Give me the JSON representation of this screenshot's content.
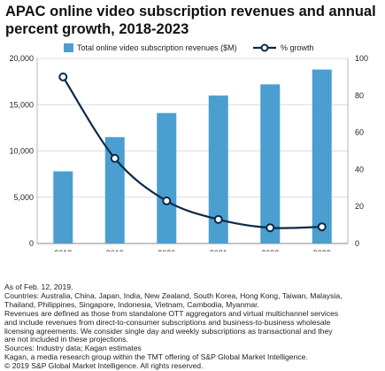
{
  "title": "APAC online video subscription revenues and annual percent growth, 2018-2023",
  "colors": {
    "bar": "#4b9fd0",
    "line": "#0d2a4a",
    "grid": "#d0d0d0",
    "axis": "#888888"
  },
  "chart_data": {
    "type": "bar",
    "categories": [
      "2018",
      "2019",
      "2020",
      "2021",
      "2022",
      "2023"
    ],
    "series": [
      {
        "name": "Total online video subscription revenues ($M)",
        "type": "bar",
        "axis": "left",
        "values": [
          7800,
          11500,
          14100,
          16000,
          17200,
          18800
        ]
      },
      {
        "name": "% growth",
        "type": "line",
        "axis": "right",
        "markers": "circle",
        "values": [
          90,
          46,
          23,
          13,
          8.5,
          9
        ]
      }
    ],
    "y_left": {
      "ylim": [
        0,
        20000
      ],
      "ticks": [
        "0",
        "5,000",
        "10,000",
        "15,000",
        "20,000"
      ],
      "tick_values": [
        0,
        5000,
        10000,
        15000,
        20000
      ]
    },
    "y_right": {
      "ylim": [
        0,
        100
      ],
      "ticks": [
        "0",
        "20",
        "40",
        "60",
        "80",
        "100"
      ],
      "tick_values": [
        0,
        20,
        40,
        60,
        80,
        100
      ]
    },
    "grid": true,
    "legend": "top"
  },
  "notes": [
    "As of Feb. 12, 2019.",
    "Countries: Australia, China, Japan, India, New Zealand, South Korea, Hong Kong, Taiwan, Malaysia,",
    "Thailand, Philippines, Singapore, Indonesia, Vietnam, Cambodia, Myanmar.",
    "Revenues are defined as those from standalone OTT aggregators and virtual multichannel services",
    "and include revenues from direct-to-consumer subscriptions and business-to-business wholesale",
    "licensing agreements. We consider single day and weekly subscriptions as transactional and they",
    "are not included in these projections.",
    "Sources: Industry data; Kagan estimates",
    "Kagan, a media research group within the TMT offering of S&P Global Market Intelligence.",
    "© 2019 S&P Global Market Intelligence. All rights reserved."
  ]
}
